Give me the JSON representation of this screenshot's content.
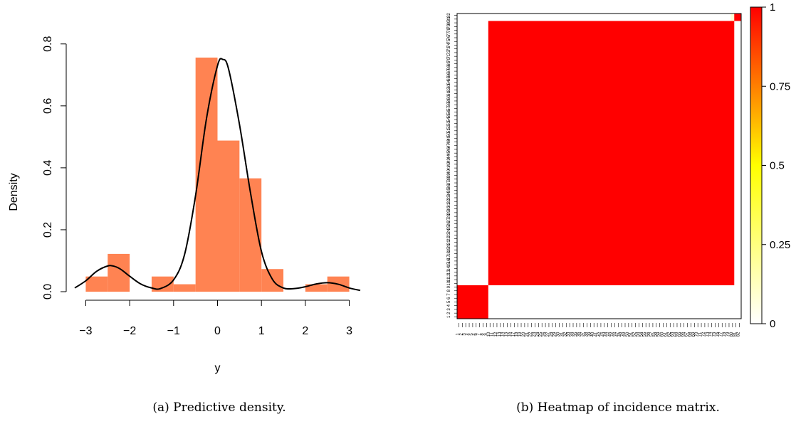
{
  "chart_data": [
    {
      "type": "bar",
      "subtype": "histogram with density curve",
      "caption": "(a) Predictive density.",
      "xlabel": "y",
      "ylabel": "Density",
      "xlim": [
        -3.25,
        3.25
      ],
      "ylim": [
        0,
        0.85
      ],
      "x_ticks": [
        -3,
        -2,
        -1,
        0,
        1,
        2,
        3
      ],
      "x_tick_labels": [
        "−3",
        "−2",
        "−1",
        "0",
        "1",
        "2",
        "3"
      ],
      "y_ticks": [
        0.0,
        0.2,
        0.4,
        0.6,
        0.8
      ],
      "y_tick_labels": [
        "0.0",
        "0.2",
        "0.4",
        "0.6",
        "0.8"
      ],
      "grid": false,
      "bar_color": "#FF8352",
      "line_color": "#000000",
      "histogram": {
        "bin_edges": [
          -3.0,
          -2.5,
          -2.0,
          -1.5,
          -1.0,
          -0.5,
          0.0,
          0.5,
          1.0,
          1.5,
          2.0,
          2.5,
          3.0
        ],
        "values": [
          0.049,
          0.122,
          0.0,
          0.049,
          0.024,
          0.756,
          0.488,
          0.366,
          0.073,
          0.0,
          0.024,
          0.049
        ]
      },
      "density_curve": {
        "x": [
          -3.25,
          -3.0,
          -2.75,
          -2.5,
          -2.35,
          -2.2,
          -2.0,
          -1.75,
          -1.5,
          -1.3,
          -1.0,
          -0.75,
          -0.5,
          -0.25,
          0.0,
          0.12,
          0.25,
          0.5,
          0.75,
          1.0,
          1.25,
          1.5,
          1.75,
          2.0,
          2.25,
          2.5,
          2.75,
          3.0,
          3.25
        ],
        "y": [
          0.012,
          0.035,
          0.066,
          0.083,
          0.082,
          0.072,
          0.05,
          0.025,
          0.012,
          0.01,
          0.038,
          0.12,
          0.31,
          0.56,
          0.73,
          0.75,
          0.72,
          0.54,
          0.32,
          0.13,
          0.04,
          0.012,
          0.01,
          0.016,
          0.025,
          0.029,
          0.024,
          0.012,
          0.004
        ]
      }
    },
    {
      "type": "heatmap",
      "caption": "(b) Heatmap of incidence matrix.",
      "n": 82,
      "row_labels_start": 1,
      "row_labels_end": 82,
      "blocks": [
        {
          "start": 1,
          "end": 9,
          "value": 1.0
        },
        {
          "start": 10,
          "end": 80,
          "value": 1.0
        },
        {
          "start": 81,
          "end": 82,
          "value": 1.0
        }
      ],
      "off_block_faint_bands": [
        {
          "rows": [
            8,
            9
          ],
          "value": 0.08
        },
        {
          "cols": [
            80,
            81
          ],
          "value": 0.08
        }
      ],
      "colorbar": {
        "ticks": [
          0,
          0.25,
          0.5,
          0.75,
          1
        ],
        "tick_labels": [
          "0",
          "0.25",
          "0.5",
          "0.75",
          "1"
        ],
        "low_color": "#FFFFFF",
        "mid_color": "#FFFF00",
        "high_color": "#FF0000"
      }
    }
  ]
}
